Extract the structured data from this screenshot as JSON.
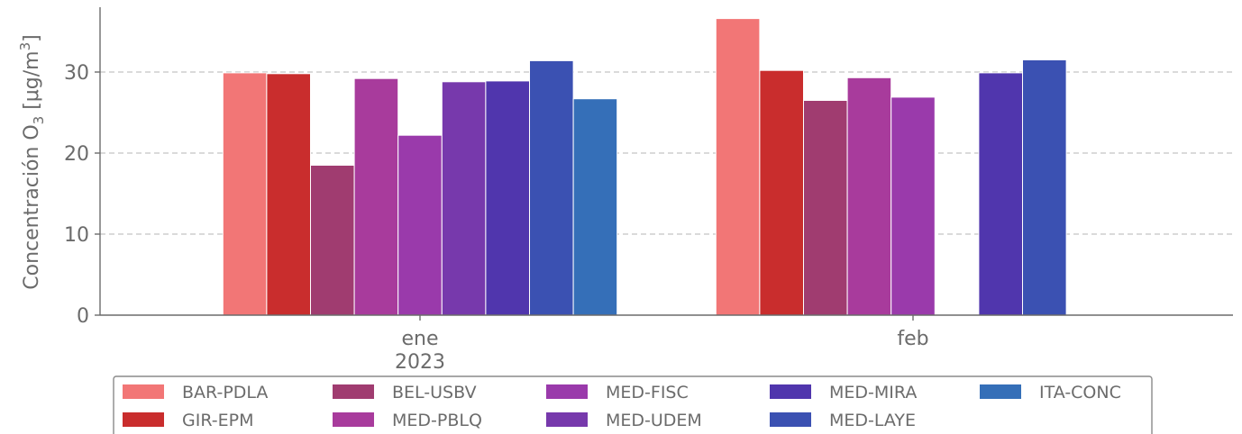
{
  "chart_data": {
    "type": "bar",
    "categories": [
      "ene\n2023",
      "feb"
    ],
    "ylabel_main": "Concentración O",
    "ylabel_sub": "3",
    "ylabel_unit_prefix": " [μg/m",
    "ylabel_unit_sup": "3",
    "ylabel_unit_suffix": "]",
    "ylim": [
      0,
      38
    ],
    "yticks": [
      0,
      10,
      20,
      30
    ],
    "grid": true,
    "legend_position": "bottom",
    "series": [
      {
        "name": "BAR-PDLA",
        "color": "#f27676",
        "values": [
          29.9,
          36.6
        ]
      },
      {
        "name": "GIR-EPM",
        "color": "#c92d2d",
        "values": [
          29.8,
          30.2
        ]
      },
      {
        "name": "BEL-USBV",
        "color": "#a03c70",
        "values": [
          18.5,
          26.5
        ]
      },
      {
        "name": "MED-PBLQ",
        "color": "#a83b9c",
        "values": [
          29.2,
          29.3
        ]
      },
      {
        "name": "MED-FISC",
        "color": "#9a3aab",
        "values": [
          22.2,
          26.9
        ]
      },
      {
        "name": "MED-UDEM",
        "color": "#7739ac",
        "values": [
          28.8,
          null
        ]
      },
      {
        "name": "MED-MIRA",
        "color": "#5036ad",
        "values": [
          28.9,
          29.9
        ]
      },
      {
        "name": "MED-LAYE",
        "color": "#3b51b2",
        "values": [
          31.4,
          31.5
        ]
      },
      {
        "name": "ITA-CONC",
        "color": "#356fb8",
        "values": [
          26.7,
          null
        ]
      }
    ],
    "legend_order": [
      "BAR-PDLA",
      "GIR-EPM",
      "BEL-USBV",
      "MED-PBLQ",
      "MED-FISC",
      "MED-UDEM",
      "MED-MIRA",
      "MED-LAYE",
      "ITA-CONC"
    ]
  }
}
